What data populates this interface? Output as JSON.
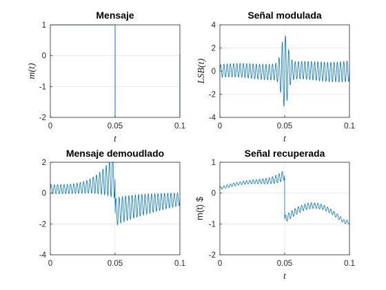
{
  "chart_data": [
    {
      "id": "mensaje",
      "type": "line",
      "title": "Mensaje",
      "xlabel": "t",
      "ylabel": "m(t)",
      "ylabel_style": "math",
      "xlim": [
        0,
        0.1
      ],
      "ylim": [
        -2,
        1
      ],
      "xticks": [
        0,
        0.05,
        0.1
      ],
      "xtick_labels": [
        "0",
        "0.05",
        "0.1"
      ],
      "yticks": [
        -2,
        -1,
        0,
        1
      ],
      "ytick_labels": [
        "-2",
        "-1",
        "0",
        "1"
      ],
      "grid": true,
      "series": [
        {
          "kind": "square",
          "x0": 0.0,
          "x1": 0.1,
          "high": 1,
          "low": -2,
          "period": 0.05,
          "color": "#0072BD"
        }
      ]
    },
    {
      "id": "senal_modulada",
      "type": "line",
      "title": "Señal modulada",
      "xlabel": "t",
      "ylabel": "LSB(t)",
      "ylabel_style": "math",
      "xlim": [
        0,
        0.1
      ],
      "ylim": [
        -4,
        4
      ],
      "xticks": [
        0,
        0.05,
        0.1
      ],
      "xtick_labels": [
        "0",
        "0.05",
        "0.1"
      ],
      "yticks": [
        -4,
        -2,
        0,
        2,
        4
      ],
      "ytick_labels": [
        "-4",
        "-2",
        "0",
        "2",
        "4"
      ],
      "grid": true,
      "series": [
        {
          "kind": "lsb",
          "samples": 1500,
          "carrier_hz": 400,
          "color": "#0072BD"
        }
      ]
    },
    {
      "id": "mensaje_demodulado",
      "type": "line",
      "title": "Mensaje demoudlado",
      "xlabel": "",
      "ylabel": "",
      "xlim": [
        0,
        0.1
      ],
      "ylim": [
        -4,
        2
      ],
      "xticks": [
        0,
        0.05,
        0.1
      ],
      "xtick_labels": [
        "0",
        "0.05",
        "0.1"
      ],
      "yticks": [
        -4,
        -2,
        0,
        2
      ],
      "ytick_labels": [
        "-4",
        "-2",
        "0",
        "2"
      ],
      "grid": true,
      "series": [
        {
          "kind": "demod",
          "samples": 1500,
          "ripple_hz": 400,
          "color": "#0072BD"
        }
      ]
    },
    {
      "id": "senal_recuperada",
      "type": "line",
      "title": "Señal recuperada",
      "xlabel": "t",
      "ylabel": "m(t) $",
      "ylabel_style": "plain",
      "xlim": [
        0,
        0.1
      ],
      "ylim": [
        -2,
        1
      ],
      "xticks": [
        0,
        0.05,
        0.1
      ],
      "xtick_labels": [
        "0",
        "0.05",
        "0.1"
      ],
      "yticks": [
        -2,
        -1,
        0,
        1
      ],
      "ytick_labels": [
        "-2",
        "-1",
        "0",
        "1"
      ],
      "grid": true,
      "series": [
        {
          "kind": "recovered",
          "samples": 1500,
          "ripple_hz": 400,
          "color": "#0072BD"
        }
      ]
    }
  ]
}
